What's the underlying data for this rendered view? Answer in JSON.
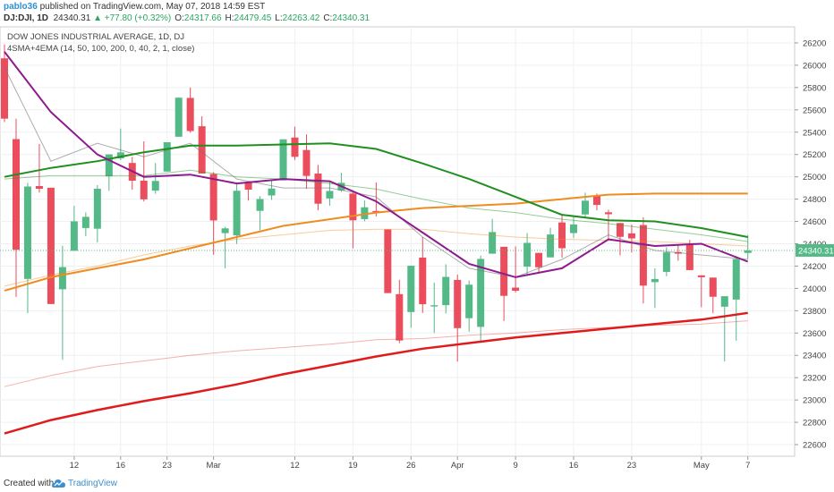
{
  "header": {
    "author": "pablo36",
    "published": "published on TradingView.com, May 07, 2018 14:59 EST",
    "symbol": "DJ:DJI, 1D",
    "last": "24340.31",
    "change": "▲ +77.80 (+0.32%)",
    "ohlc": [
      {
        "label": "O:",
        "value": "24317.66"
      },
      {
        "label": "H:",
        "value": "24479.45"
      },
      {
        "label": "L:",
        "value": "24263.42"
      },
      {
        "label": "C:",
        "value": "24340.31"
      }
    ]
  },
  "chart_data": {
    "type": "candlestick",
    "title": "DOW JONES INDUSTRIAL AVERAGE, 1D, DJ",
    "subtitle": "4SMA+4EMA (14, 50, 100, 200, 0, 40, 2, 1, close)",
    "categories": [
      null,
      null,
      null,
      null,
      null,
      null,
      "12",
      null,
      null,
      null,
      "16",
      null,
      null,
      null,
      "23",
      null,
      null,
      null,
      "Mar",
      null,
      null,
      null,
      null,
      null,
      null,
      "12",
      null,
      null,
      null,
      null,
      "19",
      null,
      null,
      null,
      null,
      "26",
      null,
      null,
      null,
      "Apr",
      null,
      null,
      null,
      null,
      "9",
      null,
      null,
      null,
      null,
      "16",
      null,
      null,
      null,
      null,
      "23",
      null,
      null,
      null,
      null,
      null,
      "May",
      null,
      null,
      null,
      "7"
    ],
    "open": [
      26062,
      25338,
      24085,
      24917,
      24902,
      23992,
      24337,
      24541,
      24535,
      25004,
      25165,
      25124,
      24965,
      24876,
      25047,
      25359,
      25707,
      25453,
      25025,
      24495,
      24475,
      24951,
      24695,
      24833,
      24968,
      25352,
      25240,
      25029,
      24806,
      24878,
      24850,
      24621,
      24694,
      24529,
      23948,
      23788,
      24276,
      23838,
      23850,
      24076,
      23733,
      23655,
      24311,
      24373,
      24007,
      24195,
      24318,
      24278,
      24591,
      24496,
      24663,
      24827,
      24682,
      24586,
      24493,
      24568,
      24056,
      24148,
      24326,
      24390,
      24117,
      24097,
      23836,
      23900,
      24317.66
    ],
    "high": [
      26187,
      25520,
      24946,
      25295,
      24903,
      24382,
      24740,
      24681,
      24925,
      25200,
      25432,
      25179,
      25318,
      25124,
      25310,
      25709,
      25800,
      25543,
      25041,
      24551,
      24951,
      24954,
      24827,
      24973,
      25336,
      25449,
      25380,
      25106,
      24955,
      25036,
      24858,
      24788,
      24950,
      24529,
      24077,
      24203,
      24461,
      24052,
      24216,
      24124,
      24070,
      24294,
      24623,
      24373,
      24377,
      24496,
      24318,
      24543,
      24662,
      24649,
      24858,
      24850,
      24705,
      24586,
      24572,
      24636,
      24180,
      24369,
      24388,
      24435,
      24117,
      24097,
      23893,
      24289,
      24479.45
    ],
    "low": [
      25490,
      23924,
      23778,
      24859,
      23860,
      23360,
      24337,
      24467,
      24411,
      24875,
      25149,
      24884,
      24779,
      24848,
      25047,
      25359,
      25396,
      25029,
      24301,
      24180,
      24398,
      24787,
      24521,
      24793,
      24968,
      25151,
      24892,
      24700,
      24741,
      24866,
      24359,
      24602,
      24644,
      23958,
      23509,
      23647,
      23780,
      23600,
      23775,
      23344,
      23612,
      23523,
      24311,
      23708,
      23963,
      24110,
      24143,
      24278,
      24275,
      24451,
      24628,
      24699,
      24431,
      24296,
      24321,
      23866,
      23824,
      24109,
      24248,
      24163,
      23832,
      23778,
      23345,
      23531,
      24263.42
    ],
    "close": [
      25521,
      24346,
      24913,
      24893,
      23860,
      24191,
      24601,
      24641,
      24893,
      25201,
      25219,
      24965,
      24798,
      24963,
      25310,
      25709,
      25410,
      25029,
      24609,
      24538,
      24875,
      24885,
      24801,
      24895,
      25336,
      25179,
      25008,
      24759,
      24873,
      24946,
      24610,
      24727,
      24683,
      23958,
      23533,
      24203,
      23858,
      23849,
      24103,
      23644,
      24033,
      24264,
      24505,
      23933,
      23979,
      24408,
      24189,
      24483,
      24360,
      24573,
      24786,
      24748,
      24665,
      24462,
      24448,
      24025,
      24084,
      24323,
      24311,
      24164,
      24100,
      23925,
      23930,
      24263,
      24340.31
    ],
    "up_color": "#53b987",
    "down_color": "#eb4d5c",
    "line_at": [
      0,
      4,
      8,
      12,
      16,
      20,
      24,
      28,
      32,
      36,
      40,
      44,
      48,
      52,
      56,
      60,
      64
    ],
    "lines": [
      {
        "color": "#ef8c1f",
        "width": 1,
        "opacity": 0.45,
        "values": [
          24020,
          24120,
          24200,
          24300,
          24380,
          24440,
          24480,
          24520,
          24530,
          24530,
          24490,
          24460,
          24440,
          24430,
          24420,
          24400,
          24380
        ]
      },
      {
        "color": "#e53935",
        "width": 1,
        "opacity": 0.4,
        "values": [
          23120,
          23220,
          23300,
          23350,
          23400,
          23440,
          23470,
          23500,
          23540,
          23550,
          23580,
          23600,
          23630,
          23650,
          23670,
          23680,
          23710
        ]
      },
      {
        "color": "#2e9a2e",
        "width": 1,
        "opacity": 0.5,
        "values": [
          24980,
          25010,
          25010,
          25010,
          25060,
          25000,
          24980,
          24940,
          24890,
          24800,
          24720,
          24680,
          24620,
          24580,
          24530,
          24480,
          24420
        ]
      },
      {
        "color": "#777777",
        "width": 1,
        "opacity": 0.6,
        "values": [
          25980,
          25140,
          25300,
          25180,
          25300,
          24980,
          24900,
          24900,
          24820,
          24460,
          24180,
          24100,
          24260,
          24480,
          24340,
          24300,
          24260
        ]
      },
      {
        "color": "#ef8c1f",
        "width": 2,
        "opacity": 1,
        "values": [
          23980,
          24100,
          24180,
          24260,
          24360,
          24460,
          24560,
          24620,
          24680,
          24720,
          24740,
          24760,
          24800,
          24840,
          24850,
          24850,
          24850
        ]
      },
      {
        "color": "#1f8f1f",
        "width": 2,
        "opacity": 1,
        "values": [
          25000,
          25080,
          25140,
          25220,
          25280,
          25280,
          25290,
          25300,
          25250,
          25120,
          24980,
          24820,
          24660,
          24610,
          24600,
          24540,
          24460
        ]
      },
      {
        "color": "#e01b1b",
        "width": 2.5,
        "opacity": 1,
        "values": [
          22700,
          22820,
          22910,
          22990,
          23060,
          23140,
          23230,
          23310,
          23390,
          23460,
          23510,
          23560,
          23600,
          23640,
          23680,
          23720,
          23780
        ]
      },
      {
        "color": "#8e1a8e",
        "width": 2,
        "opacity": 1,
        "values": [
          26120,
          25580,
          25200,
          25000,
          25020,
          24940,
          24980,
          24960,
          24780,
          24500,
          24220,
          24100,
          24180,
          24440,
          24380,
          24400,
          24240
        ]
      }
    ],
    "last_price": 24340.31,
    "last_color": "#53b987",
    "ylim": [
      22496,
      26344
    ],
    "yticks": [
      22600,
      22800,
      23000,
      23200,
      23400,
      23600,
      23800,
      24000,
      24200,
      24400,
      24600,
      24800,
      25000,
      25200,
      25400,
      25600,
      25800,
      26000,
      26200
    ],
    "grid": true
  },
  "footer": {
    "created": "Created with",
    "brand": "TradingView"
  }
}
